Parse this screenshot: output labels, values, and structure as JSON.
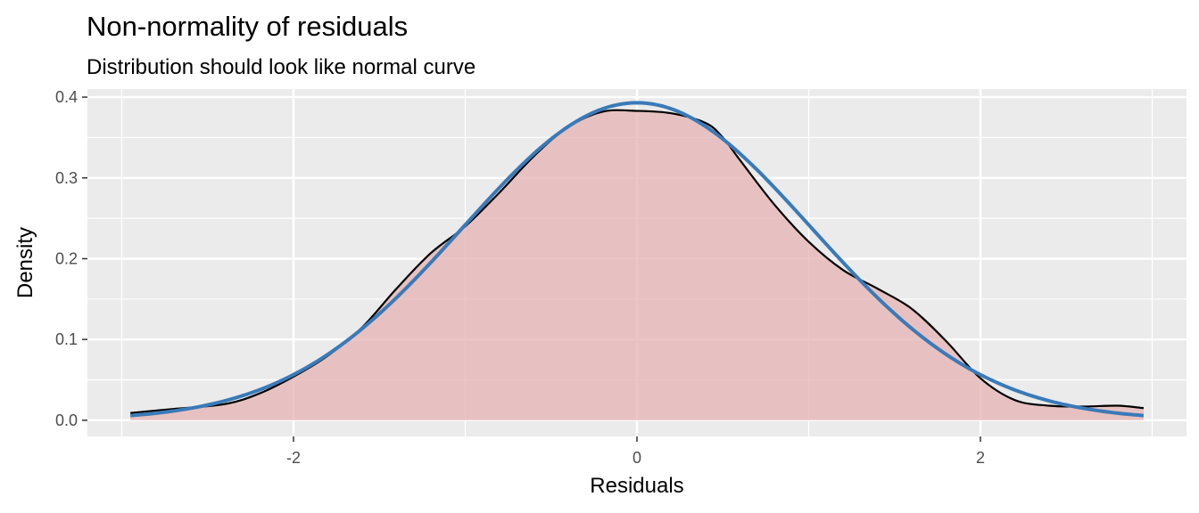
{
  "chart_data": {
    "type": "area",
    "title": "Non-normality of residuals",
    "subtitle": "Distribution should look like normal curve",
    "xlabel": "Residuals",
    "ylabel": "Density",
    "xlim": [
      -3.2,
      3.2
    ],
    "ylim": [
      -0.02,
      0.41
    ],
    "x_ticks": [
      -2,
      0,
      2
    ],
    "x_tick_labels": [
      "-2",
      "0",
      "2"
    ],
    "y_ticks": [
      0.0,
      0.1,
      0.2,
      0.3,
      0.4
    ],
    "y_tick_labels": [
      "0.0",
      "0.1",
      "0.2",
      "0.3",
      "0.4"
    ],
    "x_minor_ticks": [
      -3,
      -1,
      1,
      3
    ],
    "y_minor_ticks": [
      0.05,
      0.15,
      0.25,
      0.35
    ],
    "grid": true,
    "legend": "none",
    "colors": {
      "panel_background": "#ebebeb",
      "grid": "#ffffff",
      "density_fill": "#e6b3b3",
      "density_line": "#000000",
      "normal_curve": "#3a7ab8"
    },
    "series": [
      {
        "kind": "density",
        "x": [
          -2.95,
          -2.7,
          -2.4,
          -2.2,
          -2.0,
          -1.8,
          -1.6,
          -1.4,
          -1.2,
          -1.0,
          -0.8,
          -0.6,
          -0.4,
          -0.2,
          0.0,
          0.2,
          0.4,
          0.5,
          0.6,
          0.8,
          1.0,
          1.2,
          1.4,
          1.6,
          1.8,
          2.0,
          2.2,
          2.4,
          2.6,
          2.8,
          2.95
        ],
        "y": [
          0.009,
          0.014,
          0.02,
          0.033,
          0.054,
          0.08,
          0.115,
          0.163,
          0.207,
          0.24,
          0.282,
          0.327,
          0.363,
          0.382,
          0.383,
          0.38,
          0.368,
          0.35,
          0.322,
          0.267,
          0.221,
          0.186,
          0.163,
          0.138,
          0.098,
          0.052,
          0.025,
          0.018,
          0.017,
          0.018,
          0.015
        ]
      },
      {
        "kind": "normal",
        "mean": 0,
        "sd": 1.015,
        "x_range": [
          -2.95,
          2.95
        ]
      }
    ]
  }
}
